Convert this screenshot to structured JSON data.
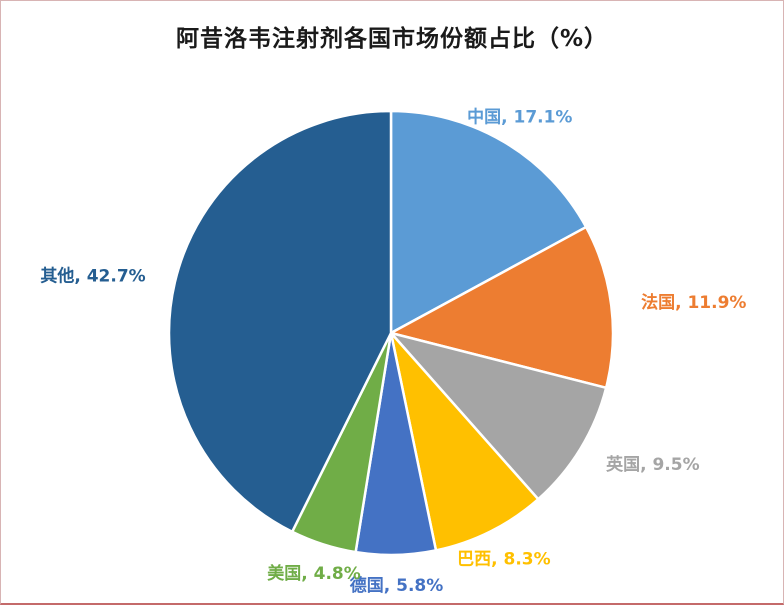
{
  "title": "阿昔洛韦注射剂各国市场份额占比（%）",
  "chart_data": {
    "type": "pie",
    "title": "阿昔洛韦注射剂各国市场份额占比（%）",
    "categories": [
      "中国",
      "法国",
      "英国",
      "巴西",
      "德国",
      "美国",
      "其他"
    ],
    "values": [
      17.1,
      11.9,
      9.5,
      8.3,
      5.8,
      4.8,
      42.7
    ],
    "labels": [
      "中国, 17.1%",
      "法国, 11.9%",
      "英国, 9.5%",
      "巴西, 8.3%",
      "德国, 5.8%",
      "美国, 4.8%",
      "其他, 42.7%"
    ],
    "colors": [
      "#5B9BD5",
      "#ED7D31",
      "#A5A5A5",
      "#FFC000",
      "#4472C4",
      "#70AD47",
      "#255E91"
    ],
    "start_angle_deg": 0,
    "direction": "clockwise",
    "legend_position": "none",
    "label_style": "outside, colored to match slice",
    "slice_border_color": "#FFFFFF",
    "background_color": "#FFFFFF",
    "title_color": "#1a1a1a"
  }
}
